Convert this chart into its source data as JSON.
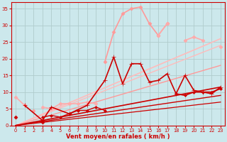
{
  "bg_color": "#cce8ec",
  "grid_color": "#b0cccc",
  "xlabel": "Vent moyen/en rafales ( km/h )",
  "xlabel_color": "#cc0000",
  "tick_color": "#cc0000",
  "xlim": [
    -0.5,
    23.5
  ],
  "ylim": [
    0,
    37
  ],
  "yticks": [
    0,
    5,
    10,
    15,
    20,
    25,
    30,
    35
  ],
  "xticks": [
    0,
    1,
    2,
    3,
    4,
    5,
    6,
    7,
    8,
    9,
    10,
    11,
    12,
    13,
    14,
    15,
    16,
    17,
    18,
    19,
    20,
    21,
    22,
    23
  ],
  "series": [
    {
      "x": [
        0,
        23
      ],
      "y": [
        0,
        26.0
      ],
      "color": "#ffbbbb",
      "lw": 1.2,
      "marker": null,
      "ms": 0,
      "connect": true
    },
    {
      "x": [
        0,
        23
      ],
      "y": [
        0,
        24.0
      ],
      "color": "#ffbbbb",
      "lw": 1.0,
      "marker": null,
      "ms": 0,
      "connect": true
    },
    {
      "x": [
        0,
        23
      ],
      "y": [
        0,
        18.0
      ],
      "color": "#ff9999",
      "lw": 1.0,
      "marker": null,
      "ms": 0,
      "connect": true
    },
    {
      "x": [
        0,
        23
      ],
      "y": [
        0,
        11.5
      ],
      "color": "#cc0000",
      "lw": 1.2,
      "marker": null,
      "ms": 0,
      "connect": true
    },
    {
      "x": [
        0,
        23
      ],
      "y": [
        0,
        9.0
      ],
      "color": "#cc0000",
      "lw": 1.0,
      "marker": null,
      "ms": 0,
      "connect": true
    },
    {
      "x": [
        0,
        23
      ],
      "y": [
        0,
        7.0
      ],
      "color": "#cc0000",
      "lw": 0.9,
      "marker": null,
      "ms": 0,
      "connect": true
    },
    {
      "x": [
        0,
        1,
        2,
        3,
        4,
        5,
        6,
        7,
        8,
        9,
        10,
        11,
        12,
        13,
        14,
        15,
        16,
        17,
        18,
        19,
        20,
        21,
        22,
        23
      ],
      "y": [
        null,
        null,
        4.5,
        null,
        null,
        null,
        null,
        null,
        null,
        null,
        19.0,
        28.0,
        33.5,
        35.0,
        35.5,
        30.5,
        27.0,
        30.5,
        null,
        null,
        null,
        null,
        null,
        null
      ],
      "color": "#ff9999",
      "lw": 1.2,
      "marker": "D",
      "ms": 2.5,
      "connect": true
    },
    {
      "x": [
        16,
        17,
        18,
        19,
        20,
        21,
        22,
        23
      ],
      "y": [
        27.0,
        30.5,
        null,
        25.5,
        26.5,
        25.5,
        null,
        23.5
      ],
      "color": "#ffaaaa",
      "lw": 1.2,
      "marker": "D",
      "ms": 2.5,
      "connect": true
    },
    {
      "x": [
        0,
        1,
        2,
        3,
        4,
        5,
        6,
        7,
        8,
        9
      ],
      "y": [
        8.5,
        6.0,
        null,
        5.5,
        5.0,
        6.5,
        6.5,
        6.5,
        7.0,
        6.5
      ],
      "color": "#ffaaaa",
      "lw": 1.2,
      "marker": "D",
      "ms": 2.5,
      "connect": true
    },
    {
      "x": [
        1,
        3,
        4,
        6,
        8,
        10,
        11,
        12,
        13,
        14,
        15,
        16,
        17,
        18,
        19,
        20,
        21,
        22,
        23
      ],
      "y": [
        6.0,
        1.5,
        5.5,
        3.5,
        6.0,
        13.5,
        20.5,
        12.5,
        18.5,
        18.5,
        13.0,
        13.5,
        15.5,
        9.5,
        15.0,
        10.5,
        10.0,
        9.5,
        11.5
      ],
      "color": "#cc0000",
      "lw": 1.2,
      "marker": "+",
      "ms": 4,
      "connect": true
    },
    {
      "x": [
        0,
        3
      ],
      "y": [
        2.5,
        1.0
      ],
      "color": "#cc0000",
      "lw": 1.0,
      "marker": "D",
      "ms": 2.5,
      "connect": false
    },
    {
      "x": [
        3,
        4,
        5,
        6,
        7,
        8,
        9,
        10
      ],
      "y": [
        2.5,
        3.0,
        2.5,
        3.5,
        4.5,
        4.5,
        5.5,
        4.5
      ],
      "color": "#cc0000",
      "lw": 1.0,
      "marker": "D",
      "ms": 2.0,
      "connect": true
    },
    {
      "x": [
        18,
        19,
        20,
        21,
        22,
        23
      ],
      "y": [
        9.5,
        9.0,
        10.0,
        10.0,
        10.0,
        11.0
      ],
      "color": "#cc0000",
      "lw": 1.2,
      "marker": "D",
      "ms": 2.0,
      "connect": true
    }
  ]
}
